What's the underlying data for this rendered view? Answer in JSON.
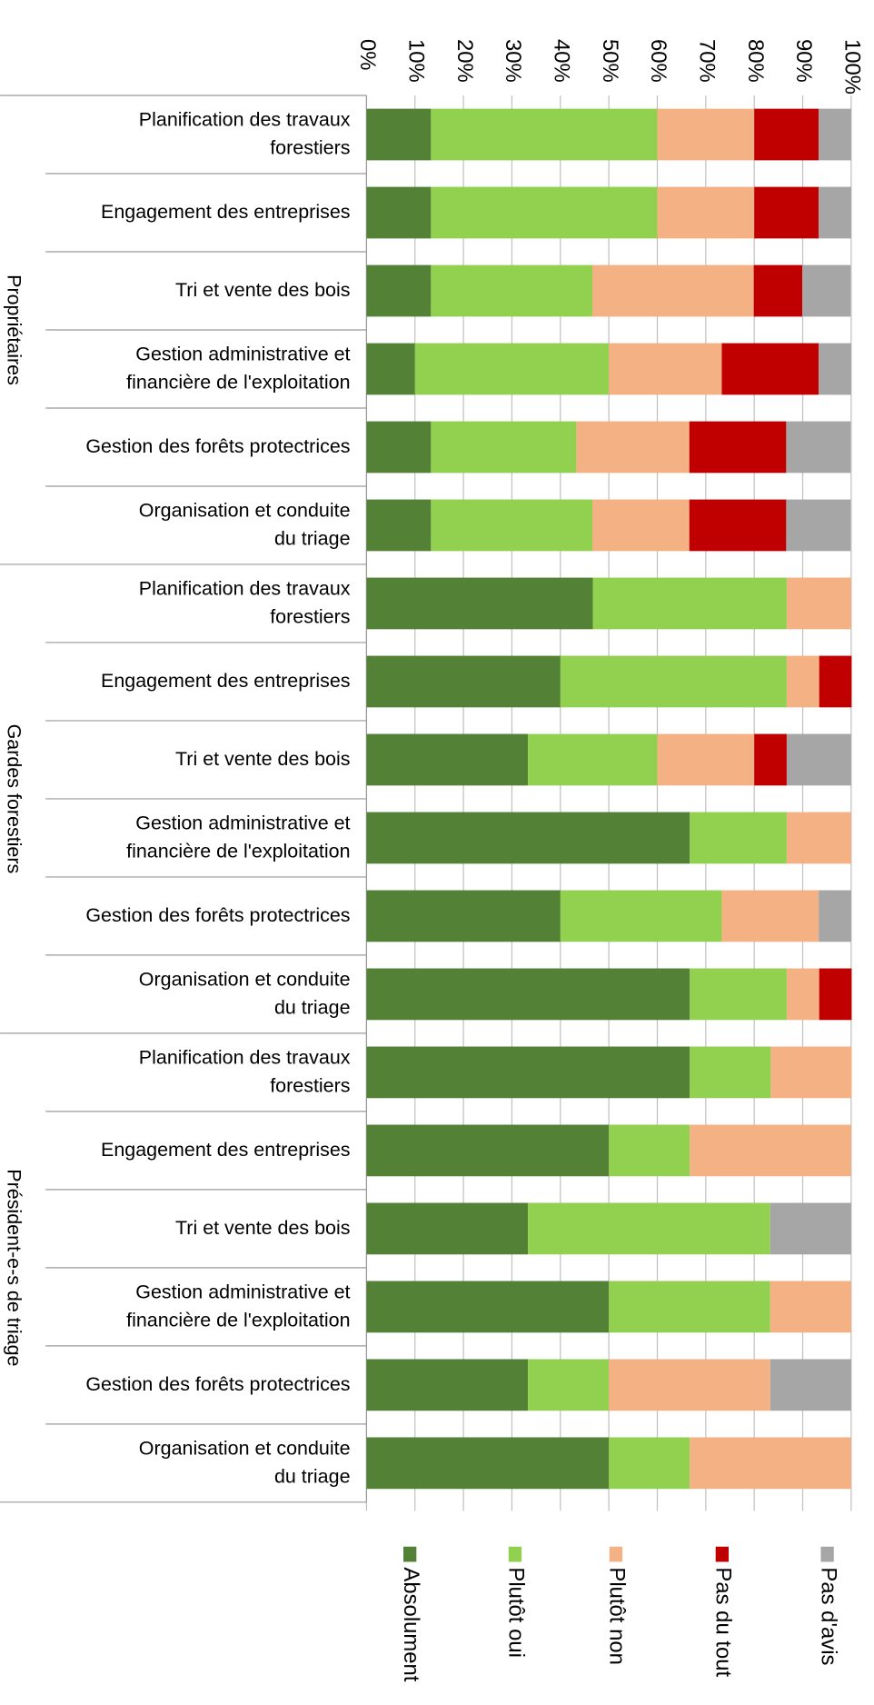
{
  "chart_data": {
    "type": "stacked_barh",
    "groups": [
      {
        "name": "Propriétaires",
        "categories": [
          [
            "Planification des travaux",
            "forestiers"
          ],
          [
            "Engagement des entreprises"
          ],
          [
            "Tri et vente des bois"
          ],
          [
            "Gestion administrative et",
            "financière de l'exploitation"
          ],
          [
            "Gestion des forêts protectrices"
          ],
          [
            "Organisation et conduite",
            "du triage"
          ]
        ]
      },
      {
        "name": "Gardes forestiers",
        "categories": [
          [
            "Planification des travaux",
            "forestiers"
          ],
          [
            "Engagement des entreprises"
          ],
          [
            "Tri et vente des bois"
          ],
          [
            "Gestion administrative et",
            "financière de l'exploitation"
          ],
          [
            "Gestion des forêts protectrices"
          ],
          [
            "Organisation et conduite",
            "du triage"
          ]
        ]
      },
      {
        "name": "Président-e-s de triage",
        "categories": [
          [
            "Planification des travaux",
            "forestiers"
          ],
          [
            "Engagement des entreprises"
          ],
          [
            "Tri et vente des bois"
          ],
          [
            "Gestion administrative et",
            "financière de l'exploitation"
          ],
          [
            "Gestion des forêts protectrices"
          ],
          [
            "Organisation et conduite",
            "du triage"
          ]
        ]
      }
    ],
    "series": [
      {
        "name": "Absolument",
        "color": "#538135",
        "values": [
          13.3,
          13.3,
          13.3,
          10,
          13.3,
          13.3,
          46.7,
          40,
          33.3,
          66.7,
          40,
          66.7,
          66.7,
          50,
          33.3,
          50,
          33.3,
          50
        ]
      },
      {
        "name": "Plutôt oui",
        "color": "#92d050",
        "values": [
          46.7,
          46.7,
          33.3,
          40,
          30,
          33.3,
          40,
          46.7,
          26.7,
          20,
          33.3,
          20,
          16.7,
          16.7,
          50,
          33.3,
          16.7,
          16.7
        ]
      },
      {
        "name": "Plutôt non",
        "color": "#f4b183",
        "values": [
          20,
          20,
          33.3,
          23.3,
          23.3,
          20,
          13.3,
          6.7,
          20,
          13.3,
          20,
          6.7,
          16.7,
          33.3,
          0,
          16.7,
          33.3,
          33.3
        ]
      },
      {
        "name": "Pas du tout",
        "color": "#c00000",
        "values": [
          13.3,
          13.3,
          10,
          20,
          20,
          20,
          0,
          6.7,
          6.7,
          0,
          0,
          6.7,
          0,
          0,
          0,
          0,
          0,
          0
        ]
      },
      {
        "name": "Pas d'avis",
        "color": "#a6a6a6",
        "values": [
          6.7,
          6.7,
          10,
          6.7,
          13.3,
          13.3,
          0,
          0,
          13.3,
          0,
          6.7,
          0,
          0,
          0,
          16.7,
          0,
          16.7,
          0
        ]
      }
    ],
    "xlim": [
      0,
      100
    ],
    "xticks": [
      {
        "value": 0,
        "label": "0%"
      },
      {
        "value": 10,
        "label": "10%"
      },
      {
        "value": 20,
        "label": "20%"
      },
      {
        "value": 30,
        "label": "30%"
      },
      {
        "value": 40,
        "label": "40%"
      },
      {
        "value": 50,
        "label": "50%"
      },
      {
        "value": 60,
        "label": "60%"
      },
      {
        "value": 70,
        "label": "70%"
      },
      {
        "value": 80,
        "label": "80%"
      },
      {
        "value": 90,
        "label": "90%"
      },
      {
        "value": 100,
        "label": "100%"
      }
    ],
    "grid": true
  }
}
